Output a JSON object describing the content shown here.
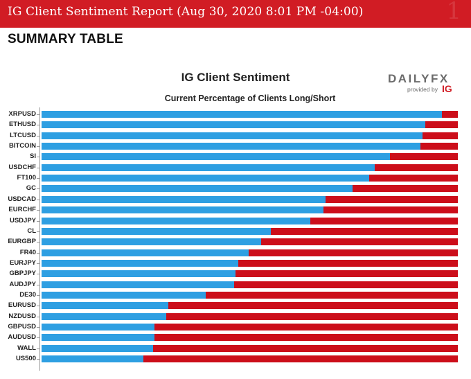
{
  "header": {
    "title": "IG Client Sentiment Report (Aug 30, 2020 8:01 PM -04:00)"
  },
  "section": {
    "title": "SUMMARY TABLE"
  },
  "brand": {
    "name_part1": "DAILY",
    "name_part2": "FX",
    "provided_by": "provided by",
    "ig": "IG"
  },
  "colors": {
    "long": "#2e9fe2",
    "short": "#cc0e1a",
    "header_bg": "#d11c24"
  },
  "chart_data": {
    "type": "bar",
    "orientation": "horizontal",
    "stacked": true,
    "title": "IG Client Sentiment",
    "subtitle": "Current Percentage of Clients Long/Short",
    "xlim": [
      0,
      100
    ],
    "categories": [
      "XRPUSD",
      "ETHUSD",
      "LTCUSD",
      "BITCOIN",
      "SI",
      "USDCHF",
      "FT100",
      "GC",
      "USDCAD",
      "EURCHF",
      "USDJPY",
      "CL",
      "EURGBP",
      "FR40",
      "EURJPY",
      "GBPJPY",
      "AUDJPY",
      "DE30",
      "EURUSD",
      "NZDUSD",
      "GBPUSD",
      "AUDUSD",
      "WALL",
      "US500"
    ],
    "series": [
      {
        "name": "Long",
        "values": [
          96.2,
          92.1,
          91.5,
          91.0,
          83.7,
          80.0,
          78.7,
          74.7,
          68.2,
          67.8,
          64.6,
          55.0,
          52.8,
          49.7,
          47.2,
          46.6,
          46.3,
          39.4,
          30.4,
          30.0,
          27.2,
          27.2,
          26.8,
          24.4
        ]
      },
      {
        "name": "Short",
        "values": [
          3.8,
          7.9,
          8.5,
          9.0,
          16.3,
          20.0,
          21.3,
          25.3,
          31.8,
          32.2,
          35.4,
          45.0,
          47.2,
          50.3,
          52.8,
          53.4,
          53.7,
          60.6,
          69.6,
          70.0,
          72.8,
          72.8,
          73.2,
          75.6
        ]
      }
    ]
  }
}
